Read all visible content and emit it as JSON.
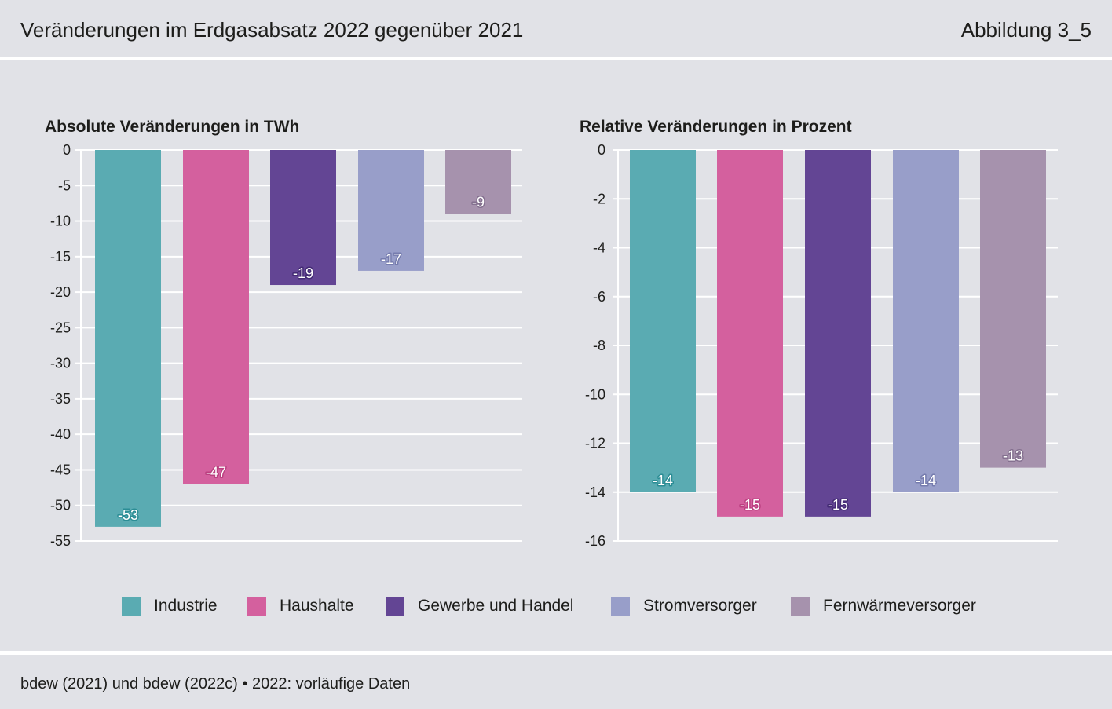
{
  "header": {
    "title": "Veränderungen im Erdgasabsatz 2022 gegenüber 2021",
    "figure_label": "Abbildung 3_5"
  },
  "legend": {
    "items": [
      {
        "label": "Industrie",
        "color": "#5aabb2",
        "label_halo": "#2b8d95"
      },
      {
        "label": "Haushalte",
        "color": "#d4609e",
        "label_halo": "#bb3f80"
      },
      {
        "label": "Gewerbe und Handel",
        "color": "#634594",
        "label_halo": "#432a74"
      },
      {
        "label": "Stromversorger",
        "color": "#989ec9",
        "label_halo": "#767cae"
      },
      {
        "label": "Fernwärmeversorger",
        "color": "#a692ad",
        "label_halo": "#84708f"
      }
    ]
  },
  "chart_data": [
    {
      "type": "bar",
      "title": "Absolute Veränderungen in TWh",
      "categories": [
        "Industrie",
        "Haushalte",
        "Gewerbe und Handel",
        "Stromversorger",
        "Fernwärmeversorger"
      ],
      "values": [
        -53,
        -47,
        -19,
        -17,
        -9
      ],
      "ylim": [
        -55,
        0
      ],
      "yticks": [
        0,
        -5,
        -10,
        -15,
        -20,
        -25,
        -30,
        -35,
        -40,
        -45,
        -50,
        -55
      ],
      "grid": true,
      "legend": "bottom"
    },
    {
      "type": "bar",
      "title": "Relative Veränderungen in Prozent",
      "categories": [
        "Industrie",
        "Haushalte",
        "Gewerbe und Handel",
        "Stromversorger",
        "Fernwärmeversorger"
      ],
      "values": [
        -14,
        -15,
        -15,
        -14,
        -13
      ],
      "ylim": [
        -16,
        0
      ],
      "yticks": [
        0,
        -2,
        -4,
        -6,
        -8,
        -10,
        -12,
        -14,
        -16
      ],
      "grid": true,
      "legend": "bottom"
    }
  ],
  "footer": {
    "source": "bdew (2021) und bdew (2022c) • 2022: vorläufige Daten"
  }
}
